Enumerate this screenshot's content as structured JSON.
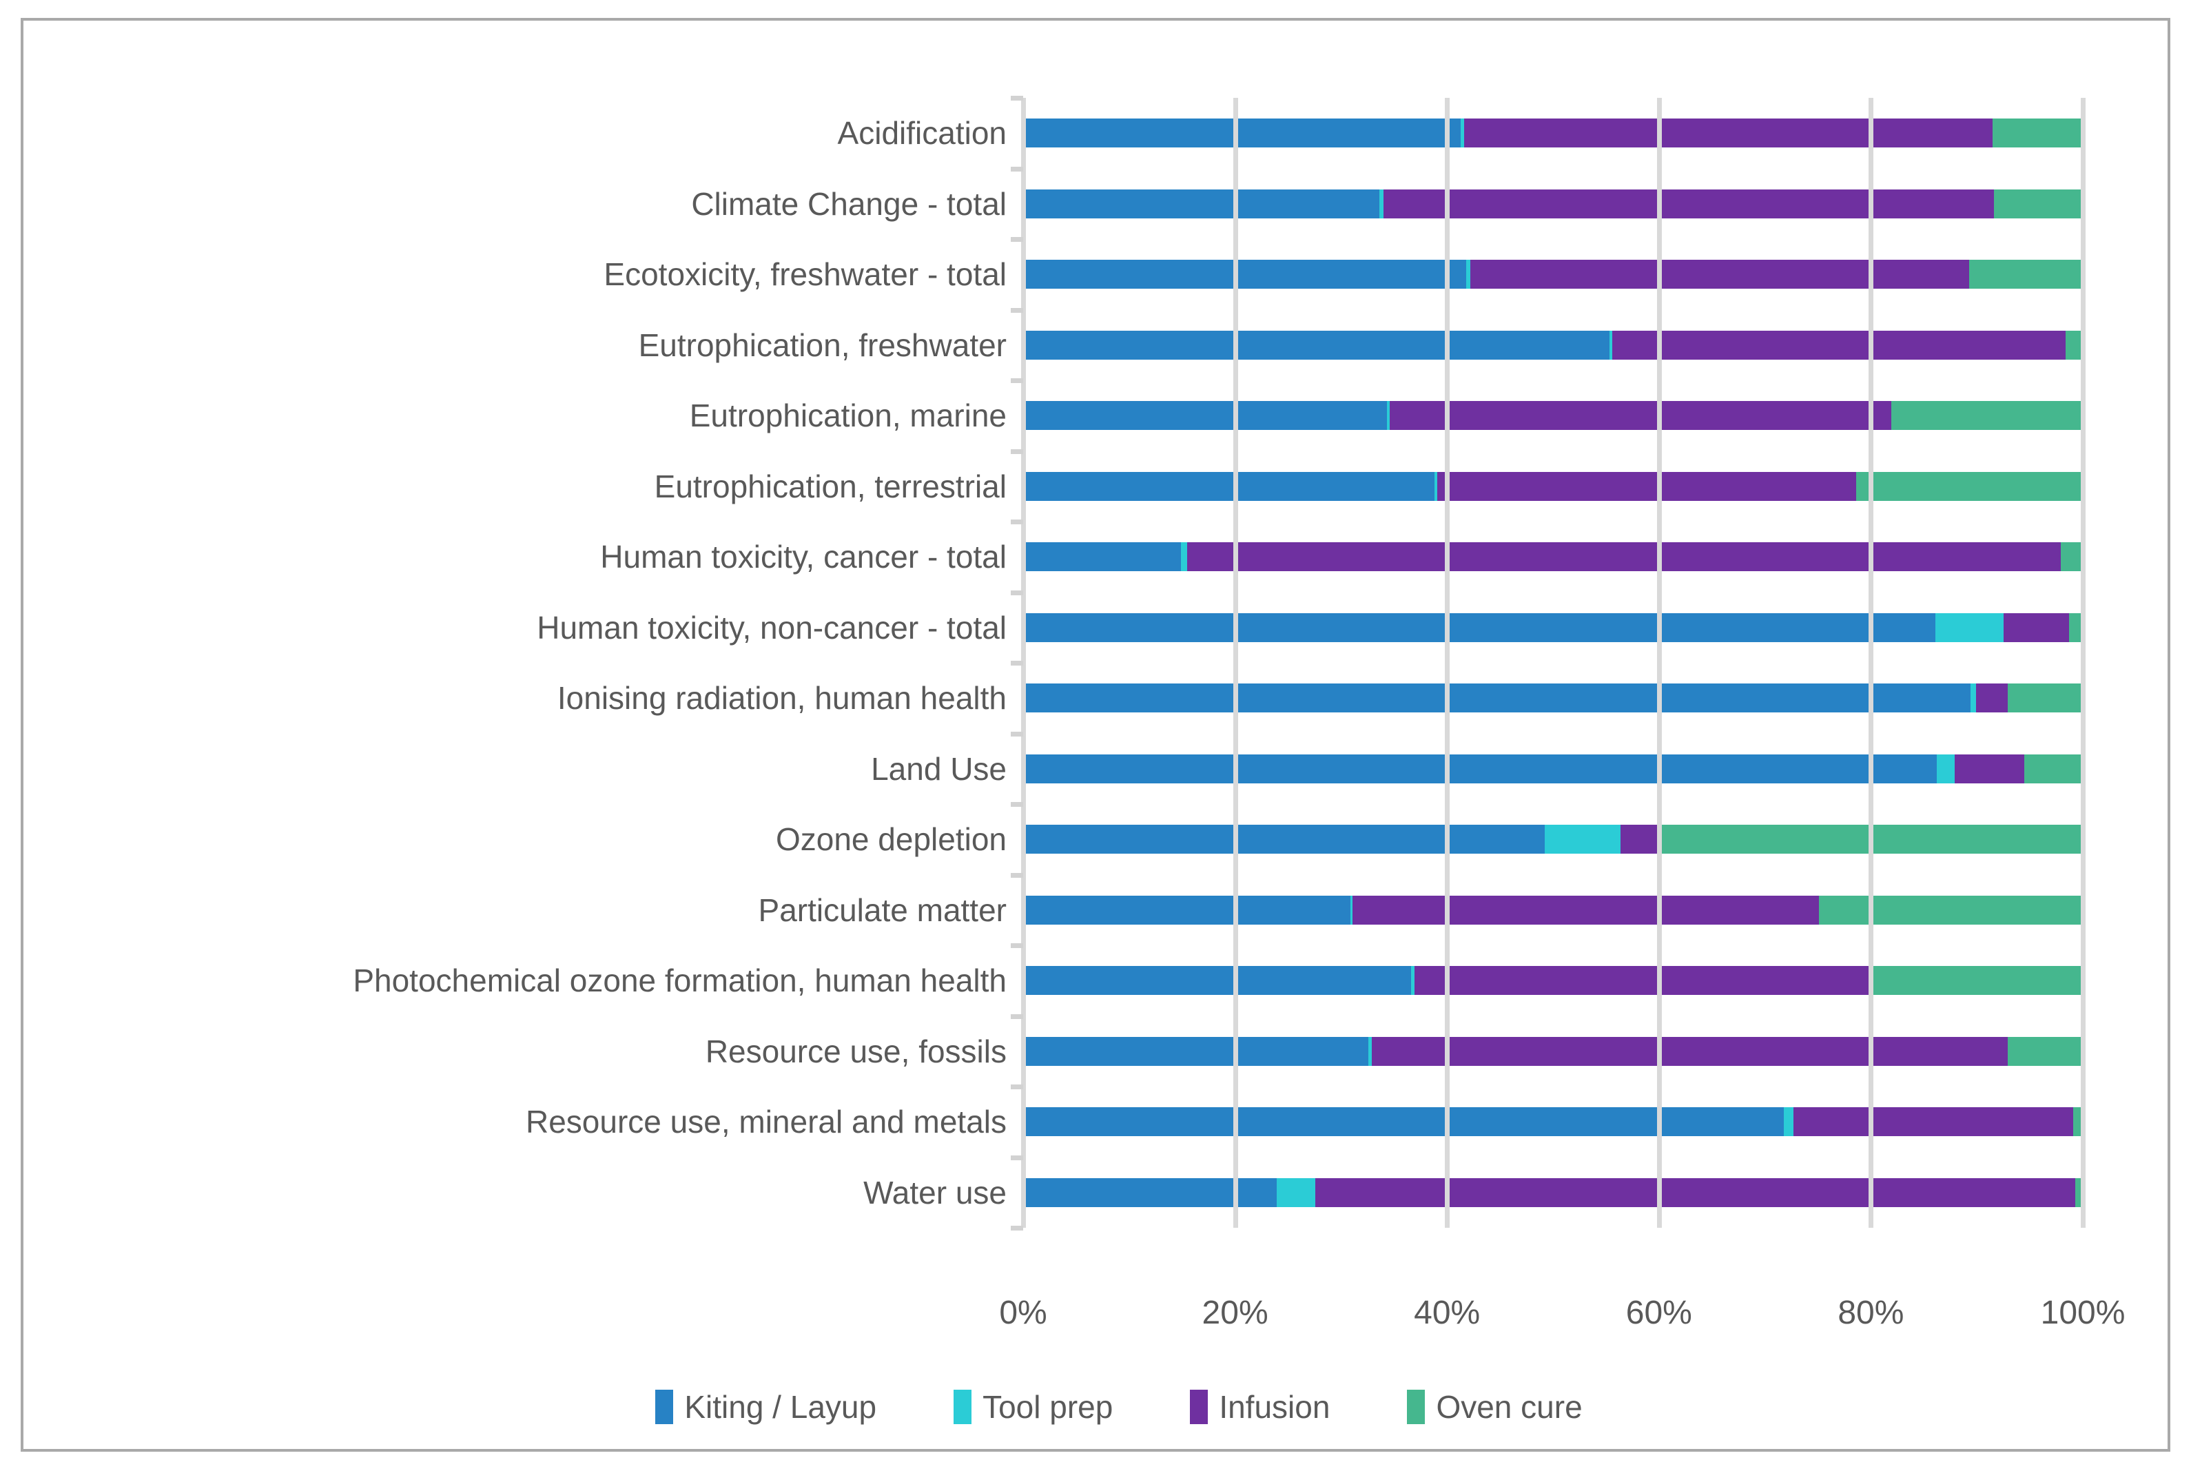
{
  "figure": {
    "background": "#ffffff",
    "border_color": "#a9a9a9",
    "text_color": "#595959",
    "gridline_color": "#d9d9d9"
  },
  "chart_data": {
    "type": "bar",
    "orientation": "horizontal",
    "stacked": true,
    "units": "percent",
    "title": "",
    "xlabel": "",
    "ylabel": "",
    "x_axis": {
      "min": 0,
      "max": 100,
      "tick_labels": [
        "0%",
        "20%",
        "40%",
        "60%",
        "80%",
        "100%"
      ],
      "tick_values": [
        0,
        20,
        40,
        60,
        80,
        100
      ],
      "grid": true
    },
    "categories": [
      "Acidification",
      "Climate Change - total",
      "Ecotoxicity, freshwater - total",
      "Eutrophication, freshwater",
      "Eutrophication, marine",
      "Eutrophication, terrestrial",
      "Human toxicity, cancer - total",
      "Human toxicity, non-cancer - total",
      "Ionising radiation, human health",
      "Land Use",
      "Ozone depletion",
      "Particulate matter",
      "Photochemical ozone formation, human health",
      "Resource use, fossils",
      "Resource use, mineral and metals",
      "Water use"
    ],
    "series": [
      {
        "name": "Kiting / Layup",
        "color": "#2782c5",
        "values": [
          41.3,
          33.6,
          41.8,
          55.3,
          34.3,
          38.8,
          14.9,
          86.1,
          89.4,
          86.2,
          49.2,
          30.9,
          36.6,
          32.6,
          71.8,
          23.9
        ]
      },
      {
        "name": "Tool prep",
        "color": "#2bccd6",
        "values": [
          0.3,
          0.4,
          0.4,
          0.3,
          0.3,
          0.3,
          0.6,
          6.4,
          0.5,
          1.7,
          7.2,
          0.2,
          0.3,
          0.3,
          0.9,
          3.7
        ]
      },
      {
        "name": "Infusion",
        "color": "#6f30a0",
        "values": [
          49.9,
          57.6,
          47.1,
          42.8,
          47.3,
          39.5,
          82.4,
          6.2,
          3.0,
          6.6,
          3.6,
          44.0,
          43.0,
          60.0,
          26.4,
          71.7
        ]
      },
      {
        "name": "Oven cure",
        "color": "#45b78e",
        "values": [
          8.5,
          8.4,
          10.7,
          1.6,
          18.1,
          21.4,
          2.1,
          1.3,
          7.1,
          5.5,
          40.0,
          24.9,
          20.1,
          7.1,
          0.9,
          0.7
        ]
      }
    ],
    "legend": {
      "position": "bottom",
      "labels": [
        "Kiting / Layup",
        "Tool prep",
        "Infusion",
        "Oven cure"
      ]
    }
  }
}
